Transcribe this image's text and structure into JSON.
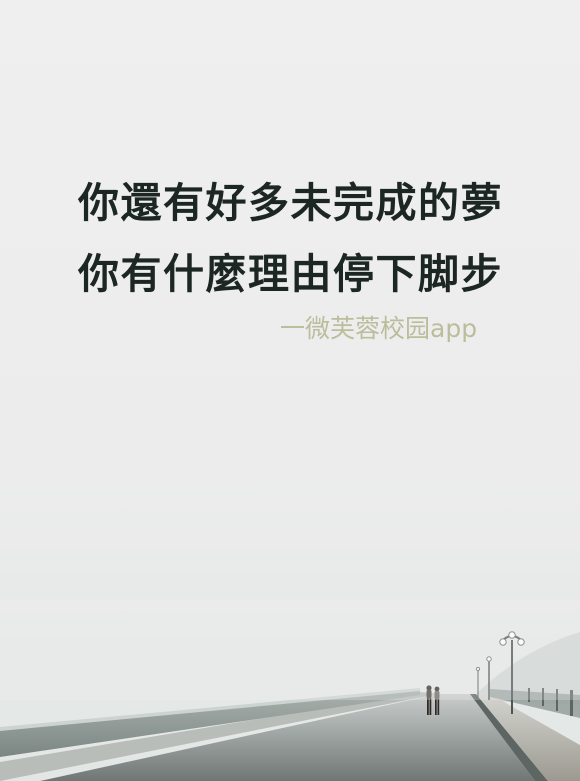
{
  "poem": {
    "line1": "你還有好多未完成的夢",
    "line2": "你有什麼理由停下脚步"
  },
  "credit": "一微芙蓉校园app",
  "colors": {
    "text": "#1c2622",
    "credit": "#b9bb98",
    "fog": "#efefef",
    "road": "#8c9290"
  }
}
